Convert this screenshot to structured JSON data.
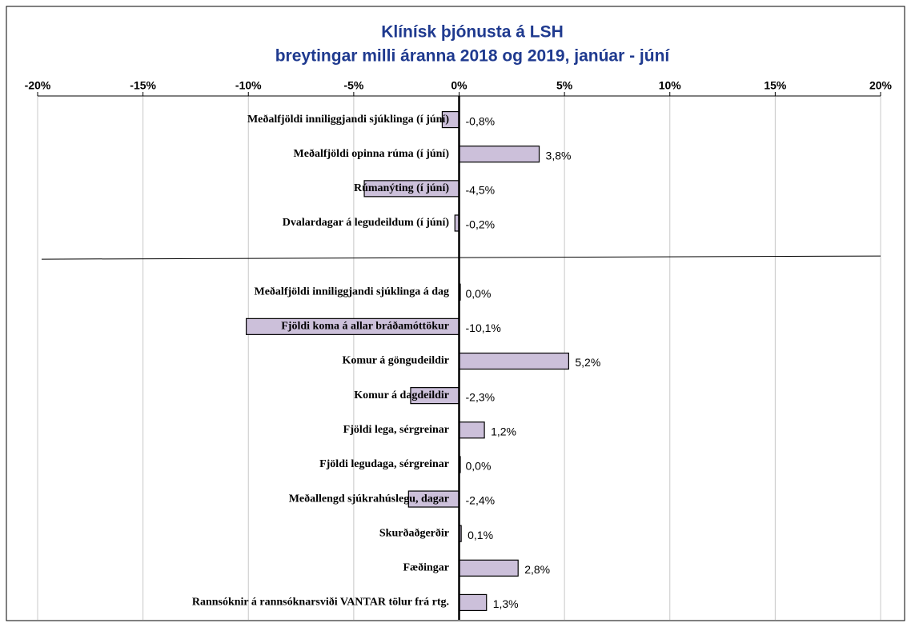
{
  "chart_data": {
    "type": "barh",
    "title": [
      "Klínísk þjónusta á LSH",
      "breytingar milli áranna 2018 og 2019,  janúar - júní"
    ],
    "categories": [
      "Meðalfjöldi inniliggjandi sjúklinga (í júní)",
      "Meðalfjöldi opinna rúma (í júní)",
      "Rúmanýting (í júní)",
      "Dvalardagar á legudeildum (í júní)",
      null,
      "Meðalfjöldi inniliggjandi sjúklinga á dag",
      "Fjöldi koma á allar bráðamóttökur",
      "Komur á göngudeildir",
      "Komur á dagdeildir",
      "Fjöldi lega, sérgreinar",
      "Fjöldi legudaga, sérgreinar",
      "Meðallengd sjúkrahúslegu, dagar",
      "Skurðaðgerðir",
      "Fæðingar",
      "Rannsóknir á rannsóknarsviði VANTAR tölur frá rtg."
    ],
    "values": [
      -0.8,
      3.8,
      -4.5,
      -0.2,
      null,
      0.0,
      -10.1,
      5.2,
      -2.3,
      1.2,
      0.0,
      -2.4,
      0.1,
      2.8,
      1.3
    ],
    "value_labels": [
      "-0,8%",
      "3,8%",
      "-4,5%",
      "-0,2%",
      null,
      "0,0%",
      "-10,1%",
      "5,2%",
      "-2,3%",
      "1,2%",
      "0,0%",
      "-2,4%",
      "0,1%",
      "2,8%",
      "1,3%"
    ],
    "color": "#ccc0da",
    "xlim": [
      -20,
      20
    ],
    "xticks": [
      {
        "value": -20,
        "label": "-20%"
      },
      {
        "value": -15,
        "label": "-15%"
      },
      {
        "value": -10,
        "label": "-10%"
      },
      {
        "value": -5,
        "label": "-5%"
      },
      {
        "value": 0,
        "label": "0%"
      },
      {
        "value": 5,
        "label": "5%"
      },
      {
        "value": 10,
        "label": "10%"
      },
      {
        "value": 15,
        "label": "15%"
      },
      {
        "value": 20,
        "label": "20%"
      }
    ],
    "grid": true
  }
}
